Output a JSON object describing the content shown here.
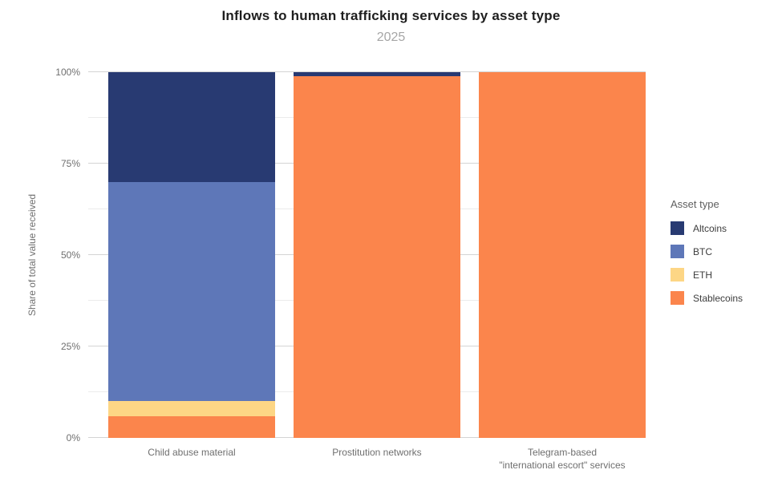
{
  "title": "Inflows to human trafficking services by asset type",
  "subtitle": "2025",
  "chart_data": {
    "type": "bar",
    "stacked": true,
    "title": "Inflows to human trafficking services by asset type",
    "subtitle": "2025",
    "ylabel": "Share of total value received",
    "xlabel": "",
    "ylim": [
      0,
      100
    ],
    "yticks": [
      0,
      25,
      50,
      75,
      100
    ],
    "ytick_suffix": "%",
    "minor_grid_step": 12.5,
    "grid": true,
    "categories": [
      "Child abuse material",
      "Prostitution networks",
      "Telegram-based\n\"international escort\" services"
    ],
    "series": [
      {
        "name": "Stablecoins",
        "color": "#fb854c",
        "values": [
          6,
          99,
          100
        ]
      },
      {
        "name": "ETH",
        "color": "#fdd685",
        "values": [
          4,
          0,
          0
        ]
      },
      {
        "name": "BTC",
        "color": "#5e77b8",
        "values": [
          60,
          0,
          0
        ]
      },
      {
        "name": "Altcoins",
        "color": "#283a72",
        "values": [
          30,
          1,
          0
        ]
      }
    ],
    "legend": {
      "title": "Asset type",
      "position": "right",
      "order": [
        "Altcoins",
        "BTC",
        "ETH",
        "Stablecoins"
      ]
    }
  },
  "colors": {
    "title_text": "#1e1e1e",
    "subtitle_text": "#a6a6a6",
    "axis_text": "#6f6f6f",
    "major_gridline": "#d4d4d4",
    "minor_gridline": "#ebebeb",
    "background": "#ffffff"
  }
}
